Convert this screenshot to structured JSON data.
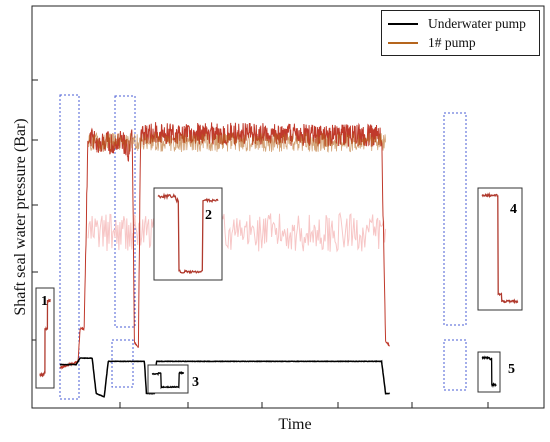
{
  "chart_data": {
    "type": "line",
    "title": "",
    "xlabel": "Time",
    "ylabel": "Shaft seal water pressure (Bar)",
    "grid": false,
    "legend_position": "top-right",
    "series": [
      {
        "name": "Underwater pump",
        "color": "#000000",
        "description_points": [
          [
            0.0,
            0.11
          ],
          [
            0.04,
            0.11
          ],
          [
            0.05,
            0.13
          ],
          [
            0.08,
            0.13
          ],
          [
            0.09,
            0.02
          ],
          [
            0.11,
            0.01
          ],
          [
            0.12,
            0.12
          ],
          [
            0.21,
            0.12
          ],
          [
            0.215,
            0.02
          ],
          [
            0.235,
            0.02
          ],
          [
            0.24,
            0.12
          ],
          [
            0.8,
            0.12
          ],
          [
            0.81,
            0.02
          ],
          [
            0.82,
            0.02
          ]
        ]
      },
      {
        "name": "1# pump",
        "color": "#c0392b",
        "description_points": [
          [
            0.0,
            0.1
          ],
          [
            0.045,
            0.12
          ],
          [
            0.05,
            0.22
          ],
          [
            0.06,
            0.22
          ],
          [
            0.07,
            0.83
          ],
          [
            0.1,
            0.79
          ],
          [
            0.12,
            0.8
          ],
          [
            0.14,
            0.78
          ],
          [
            0.15,
            0.82
          ],
          [
            0.17,
            0.77
          ],
          [
            0.18,
            0.82
          ],
          [
            0.185,
            0.18
          ],
          [
            0.195,
            0.16
          ],
          [
            0.2,
            0.8
          ],
          [
            0.21,
            0.83
          ],
          [
            0.8,
            0.82
          ],
          [
            0.81,
            0.18
          ],
          [
            0.82,
            0.17
          ]
        ]
      }
    ],
    "annotations": [
      "1",
      "2",
      "3",
      "4",
      "5"
    ]
  }
}
